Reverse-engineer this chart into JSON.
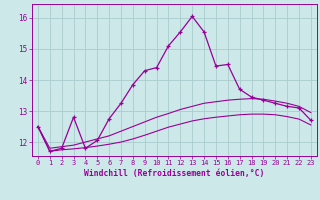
{
  "xlabel": "Windchill (Refroidissement éolien,°C)",
  "xlim": [
    -0.5,
    23.5
  ],
  "ylim": [
    11.55,
    16.45
  ],
  "yticks": [
    12,
    13,
    14,
    15,
    16
  ],
  "xticks": [
    0,
    1,
    2,
    3,
    4,
    5,
    6,
    7,
    8,
    9,
    10,
    11,
    12,
    13,
    14,
    15,
    16,
    17,
    18,
    19,
    20,
    21,
    22,
    23
  ],
  "bg_color": "#cce8e8",
  "grid_color": "#aacccc",
  "line_color": "#990099",
  "x": [
    0,
    1,
    2,
    3,
    4,
    5,
    6,
    7,
    8,
    9,
    10,
    11,
    12,
    13,
    14,
    15,
    16,
    17,
    18,
    19,
    20,
    21,
    22,
    23
  ],
  "y_main": [
    12.5,
    11.7,
    11.8,
    12.8,
    11.8,
    12.05,
    12.75,
    13.25,
    13.85,
    14.3,
    14.4,
    15.1,
    15.55,
    16.05,
    15.55,
    14.45,
    14.5,
    13.7,
    13.45,
    13.35,
    13.25,
    13.15,
    13.1,
    12.7
  ],
  "y_upper": [
    12.5,
    11.8,
    11.85,
    11.9,
    12.0,
    12.1,
    12.2,
    12.35,
    12.5,
    12.65,
    12.8,
    12.92,
    13.05,
    13.15,
    13.25,
    13.3,
    13.35,
    13.38,
    13.4,
    13.38,
    13.32,
    13.25,
    13.15,
    12.95
  ],
  "y_lower": [
    12.5,
    11.7,
    11.75,
    11.78,
    11.82,
    11.87,
    11.93,
    12.0,
    12.1,
    12.22,
    12.35,
    12.48,
    12.58,
    12.68,
    12.75,
    12.8,
    12.84,
    12.88,
    12.9,
    12.9,
    12.88,
    12.82,
    12.74,
    12.55
  ]
}
